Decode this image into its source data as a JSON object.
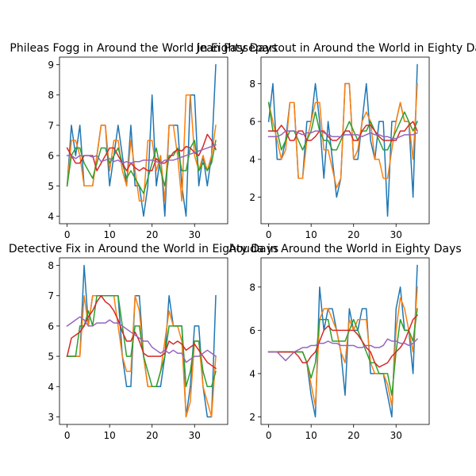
{
  "chart_data": [
    {
      "type": "line",
      "title": "Phileas Fogg in Around the World in Eighty Days",
      "xlim": [
        -1.8,
        37.8
      ],
      "ylim": [
        3.75,
        9.25
      ],
      "xticks": [
        0,
        10,
        20,
        30
      ],
      "yticks": [
        4,
        5,
        6,
        7,
        8,
        9
      ],
      "series": [
        {
          "color": "#1f77b4",
          "values": [
            5,
            7,
            6,
            7,
            5,
            5,
            5,
            6,
            7,
            7,
            5,
            6,
            7,
            6,
            5,
            7,
            5,
            5,
            4,
            5,
            8,
            5,
            6,
            4,
            7,
            7,
            7,
            5,
            4,
            8,
            8,
            5,
            6,
            5,
            6,
            9
          ]
        },
        {
          "color": "#ff7f0e",
          "values": [
            5,
            6.5,
            6.5,
            6,
            5,
            5,
            5,
            6,
            7,
            7,
            5.5,
            6.5,
            6.5,
            5.5,
            5,
            6.5,
            5.5,
            4.5,
            4.5,
            6.5,
            6.5,
            5.5,
            6,
            4.5,
            7,
            7,
            6,
            4.5,
            8,
            8,
            6,
            5.5,
            6,
            5.5,
            6,
            7
          ]
        },
        {
          "color": "#2ca02c",
          "values": [
            5,
            6,
            6.25,
            6.25,
            5.75,
            5.5,
            5.25,
            5.75,
            6.25,
            6.25,
            5.75,
            6,
            6.25,
            5.75,
            5.25,
            5.5,
            5.25,
            5,
            4.75,
            5.25,
            5.75,
            6.25,
            5.5,
            5,
            6,
            6,
            6.25,
            5.5,
            5.5,
            6.25,
            6.5,
            5.5,
            5.75,
            5.5,
            5.75,
            6.5
          ]
        },
        {
          "color": "#d62728",
          "values": [
            6.25,
            6,
            5.75,
            5.75,
            6,
            6,
            6,
            5.5,
            5.75,
            6,
            6.25,
            6.25,
            6,
            5.75,
            5.5,
            5.75,
            5.6,
            5.5,
            5.6,
            5.5,
            5.5,
            5.9,
            5.75,
            5.75,
            5.9,
            6.1,
            6.2,
            6.15,
            6.3,
            6.25,
            6.1,
            6,
            6.3,
            6.7,
            6.5,
            6.2
          ]
        },
        {
          "color": "#9467bd",
          "values": [
            6,
            6,
            5.9,
            6,
            6,
            6,
            5.95,
            6,
            5.8,
            5.85,
            5.9,
            5.8,
            5.85,
            5.75,
            5.8,
            5.75,
            5.8,
            5.8,
            5.85,
            5.85,
            5.85,
            5.8,
            5.75,
            5.85,
            5.85,
            5.85,
            5.9,
            5.95,
            6,
            6.05,
            6.1,
            6.15,
            6.2,
            6.25,
            6.3,
            6.35
          ]
        }
      ]
    },
    {
      "type": "line",
      "title": "Jean Passepartout in Around the World in Eighty Days",
      "xlim": [
        -1.8,
        37.8
      ],
      "ylim": [
        0.6,
        9.4
      ],
      "xticks": [
        0,
        10,
        20,
        30
      ],
      "yticks": [
        2,
        4,
        6,
        8
      ],
      "series": [
        {
          "color": "#1f77b4",
          "values": [
            6,
            8,
            4,
            4,
            5,
            7,
            7,
            3,
            3,
            6,
            6,
            8,
            6,
            3,
            6,
            4,
            2,
            3,
            8,
            8,
            4,
            4,
            6,
            8,
            5,
            4,
            6,
            6,
            1,
            6,
            6,
            7,
            6,
            6,
            2,
            9
          ]
        },
        {
          "color": "#ff7f0e",
          "values": [
            7,
            6,
            5,
            4,
            4.5,
            7,
            7,
            3,
            3,
            5,
            6,
            7,
            7,
            4.5,
            4.5,
            3.5,
            2.5,
            3,
            8,
            8,
            4,
            4.5,
            6,
            6.5,
            6,
            4,
            4,
            3,
            3,
            4.5,
            6,
            7,
            6,
            6,
            4,
            8
          ]
        },
        {
          "color": "#2ca02c",
          "values": [
            7,
            5.5,
            5.5,
            4.5,
            5,
            5.5,
            5.5,
            5,
            4.5,
            5,
            5.5,
            6.5,
            5.5,
            5,
            5,
            4.5,
            4.5,
            5,
            5.5,
            6,
            5.5,
            5,
            5.5,
            5.5,
            6,
            5.5,
            5,
            4.5,
            4.5,
            5,
            5.5,
            6,
            6.5,
            6,
            5.5,
            6
          ]
        },
        {
          "color": "#d62728",
          "values": [
            5.5,
            5.5,
            5.5,
            5.8,
            5.5,
            5,
            5,
            5.5,
            5.5,
            5,
            5,
            5.2,
            5.5,
            5.5,
            5.2,
            5,
            5,
            5.2,
            5.5,
            5.5,
            5,
            5,
            5.5,
            5.8,
            5.8,
            5.5,
            5.2,
            5,
            5,
            5,
            5,
            5.5,
            5.5,
            5.8,
            6,
            5.5
          ]
        },
        {
          "color": "#9467bd",
          "values": [
            5.2,
            5.2,
            5.2,
            5.3,
            5.5,
            5.5,
            5.5,
            5.4,
            5.3,
            5.4,
            5.4,
            5.5,
            5.5,
            5.4,
            5.3,
            5.2,
            5.2,
            5.2,
            5.3,
            5.3,
            5.3,
            5.3,
            5.2,
            5.3,
            5.4,
            5.3,
            5.3,
            5.2,
            5.2,
            5.1,
            5.1,
            5.2,
            5.3,
            5.3,
            5.3,
            5.4
          ]
        }
      ]
    },
    {
      "type": "line",
      "title": "Detective Fix in Around the World in Eighty Days",
      "xlim": [
        -1.8,
        37.8
      ],
      "ylim": [
        2.75,
        8.25
      ],
      "xticks": [
        0,
        10,
        20,
        30
      ],
      "yticks": [
        3,
        4,
        5,
        6,
        7,
        8
      ],
      "series": [
        {
          "color": "#1f77b4",
          "values": [
            5,
            5,
            5,
            5,
            8,
            6,
            7,
            7,
            7,
            7,
            7,
            7,
            7,
            5,
            4,
            4,
            7,
            7,
            5,
            4,
            4,
            4,
            4,
            5,
            7,
            6,
            6,
            6,
            3,
            4,
            6,
            6,
            4,
            3,
            3,
            7
          ]
        },
        {
          "color": "#ff7f0e",
          "values": [
            5,
            5,
            5,
            5,
            7,
            6,
            7,
            7,
            7,
            7,
            7,
            7,
            6,
            5,
            4.5,
            4.5,
            7,
            6.5,
            5,
            4,
            4,
            4,
            4.5,
            5.5,
            6.5,
            6,
            6,
            5.5,
            3,
            3.5,
            5.5,
            5.5,
            4,
            3.5,
            3,
            5
          ]
        },
        {
          "color": "#2ca02c",
          "values": [
            5,
            5,
            5,
            6,
            6,
            6.5,
            6,
            7,
            7,
            7,
            7,
            7,
            7,
            6,
            5,
            5,
            6,
            6,
            5,
            4.5,
            4,
            4,
            4.5,
            5,
            6,
            6,
            6,
            6,
            4,
            4.5,
            5.5,
            5.5,
            4.5,
            4,
            4,
            4.5
          ]
        },
        {
          "color": "#d62728",
          "values": [
            5,
            5.6,
            5.7,
            5.8,
            6,
            6.3,
            6.5,
            6.8,
            7,
            6.8,
            6.7,
            6.5,
            6.2,
            5.8,
            5.5,
            5.5,
            5.8,
            5.5,
            5.1,
            5,
            5,
            5,
            5,
            5.1,
            5.5,
            5.4,
            5.5,
            5.4,
            5.2,
            5.3,
            5.4,
            5.2,
            5,
            4.8,
            4.7,
            4.6
          ]
        },
        {
          "color": "#9467bd",
          "values": [
            6,
            6.1,
            6.2,
            6.3,
            6.2,
            6,
            6,
            6.1,
            6.1,
            6.1,
            6.2,
            6.1,
            6.1,
            6,
            5.9,
            5.8,
            5.7,
            5.6,
            5.5,
            5.5,
            5.3,
            5.2,
            5.1,
            5.2,
            5.1,
            5.2,
            5.1,
            5.1,
            4.8,
            4.9,
            5,
            5,
            5.1,
            5.2,
            5.1,
            5
          ]
        }
      ]
    },
    {
      "type": "line",
      "title": "Aouda in Around the World in Eighty Days",
      "xlim": [
        -1.8,
        37.8
      ],
      "ylim": [
        1.65,
        9.35
      ],
      "xticks": [
        0,
        10,
        20,
        30
      ],
      "yticks": [
        2,
        4,
        6,
        8
      ],
      "series": [
        {
          "color": "#1f77b4",
          "values": [
            5,
            5,
            5,
            5,
            5,
            5,
            5,
            5,
            5,
            4.5,
            3,
            2,
            8,
            6,
            7,
            7,
            6,
            5,
            3,
            7,
            6,
            6,
            7,
            7,
            4,
            4,
            4,
            4,
            3,
            2,
            7,
            8,
            6,
            6,
            4,
            9
          ]
        },
        {
          "color": "#ff7f0e",
          "values": [
            5,
            5,
            5,
            5,
            5,
            5,
            5,
            5,
            5,
            4.5,
            3.5,
            2.5,
            6.5,
            7,
            7,
            6.5,
            6,
            5,
            4.5,
            6.5,
            6,
            6.5,
            6.5,
            6.5,
            4.5,
            4,
            4,
            4,
            3.5,
            2.5,
            6,
            7.5,
            7,
            6,
            5,
            8
          ]
        },
        {
          "color": "#2ca02c",
          "values": [
            5,
            5,
            5,
            5,
            5,
            5,
            5,
            5,
            5,
            4.5,
            3.8,
            4.5,
            6.5,
            6.5,
            6.5,
            5.5,
            5.5,
            5.5,
            5.5,
            6,
            6.5,
            6,
            5.5,
            5,
            4.5,
            4.5,
            4,
            4,
            4,
            3,
            5,
            6.5,
            6,
            6,
            5.5,
            7
          ]
        },
        {
          "color": "#d62728",
          "values": [
            5,
            5,
            5,
            5,
            5,
            5,
            5,
            4.8,
            4.5,
            4.5,
            4.8,
            5,
            5.5,
            6,
            6.2,
            6,
            6,
            6,
            6,
            6,
            6,
            5.8,
            5.5,
            5.2,
            5,
            4.5,
            4.3,
            4.4,
            4.5,
            4.8,
            5,
            5.2,
            5.5,
            6,
            6.5,
            6.7
          ]
        },
        {
          "color": "#9467bd",
          "values": [
            5,
            5,
            5,
            4.8,
            4.6,
            4.8,
            5,
            5.1,
            5.2,
            5.2,
            5.3,
            5.3,
            5.4,
            5.4,
            5.5,
            5.4,
            5.4,
            5.3,
            5.3,
            5.3,
            5.3,
            5.2,
            5.2,
            5.3,
            5.3,
            5.2,
            5.2,
            5.3,
            5.6,
            5.5,
            5.5,
            5.4,
            5.4,
            5.3,
            5.4,
            5.6
          ]
        }
      ]
    }
  ]
}
